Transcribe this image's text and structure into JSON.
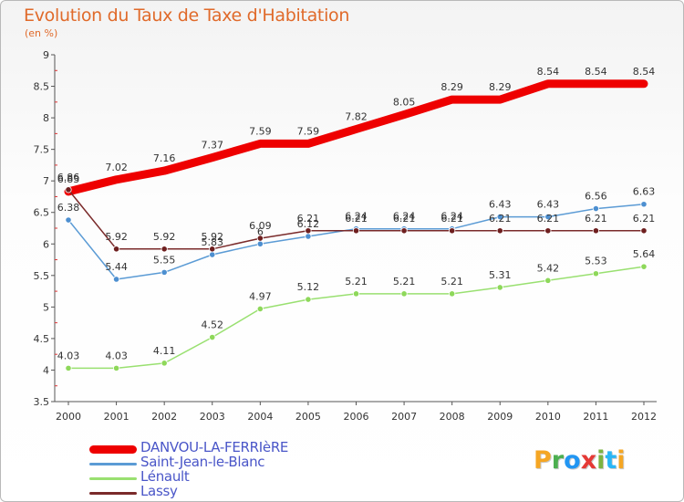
{
  "title": "Evolution du Taux de Taxe d'Habitation",
  "unit_label": "(en %)",
  "logo": {
    "text": "Proxiti",
    "letters": [
      "P",
      "r",
      "o",
      "x",
      "i",
      "t",
      "i"
    ],
    "colors": [
      "#f5a623",
      "#4caf50",
      "#2196f3",
      "#e53935",
      "#7cb342",
      "#29b6f6",
      "#f5a623"
    ]
  },
  "chart_data": {
    "type": "line",
    "title": "Evolution du Taux de Taxe d'Habitation",
    "ylabel": "(en %)",
    "xlabel": "",
    "x": [
      "2000",
      "2001",
      "2002",
      "2003",
      "2004",
      "2005",
      "2006",
      "2007",
      "2008",
      "2009",
      "2010",
      "2011",
      "2012"
    ],
    "ylim": [
      3.5,
      9
    ],
    "yticks": [
      "3.5",
      "4",
      "4.5",
      "5",
      "5.5",
      "6",
      "6.5",
      "7",
      "7.5",
      "8",
      "8.5",
      "9"
    ],
    "grid": false,
    "legend_position": "bottom-left",
    "series": [
      {
        "name": "DANVOU-LA-FERRIèRE",
        "color": "#ee0000",
        "width": 9,
        "values": [
          6.83,
          7.02,
          7.16,
          7.37,
          7.59,
          7.59,
          7.82,
          8.05,
          8.29,
          8.29,
          8.54,
          8.54,
          8.54
        ],
        "labels": [
          "6.83",
          "7.02",
          "7.16",
          "7.37",
          "7.59",
          "7.59",
          "7.82",
          "8.05",
          "8.29",
          "8.29",
          "8.54",
          "8.54",
          "8.54"
        ]
      },
      {
        "name": "Saint-Jean-le-Blanc",
        "color": "#5b9bd5",
        "width": 1.5,
        "values": [
          6.38,
          5.44,
          5.55,
          5.83,
          6.0,
          6.12,
          6.24,
          6.24,
          6.24,
          6.43,
          6.43,
          6.56,
          6.63
        ],
        "labels": [
          "6.38",
          "5.44",
          "5.55",
          "5.83",
          "6",
          "6.12",
          "6.24",
          "6.24",
          "6.24",
          "6.43",
          "6.43",
          "6.56",
          "6.63"
        ]
      },
      {
        "name": "Lénault",
        "color": "#99e070",
        "width": 1.5,
        "values": [
          4.03,
          4.03,
          4.11,
          4.52,
          4.97,
          5.12,
          5.21,
          5.21,
          5.21,
          5.31,
          5.42,
          5.53,
          5.64
        ],
        "labels": [
          "4.03",
          "4.03",
          "4.11",
          "4.52",
          "4.97",
          "5.12",
          "5.21",
          "5.21",
          "5.21",
          "5.31",
          "5.42",
          "5.53",
          "5.64"
        ]
      },
      {
        "name": "Lassy",
        "color": "#7a2a2a",
        "width": 1.5,
        "values": [
          6.86,
          5.92,
          5.92,
          5.92,
          6.09,
          6.21,
          6.21,
          6.21,
          6.21,
          6.21,
          6.21,
          6.21,
          6.21
        ],
        "labels": [
          "6.86",
          "5.92",
          "5.92",
          "5.92",
          "6.09",
          "6.21",
          "6.21",
          "6.21",
          "6.21",
          "6.21",
          "6.21",
          "6.21",
          "6.21"
        ]
      }
    ]
  }
}
